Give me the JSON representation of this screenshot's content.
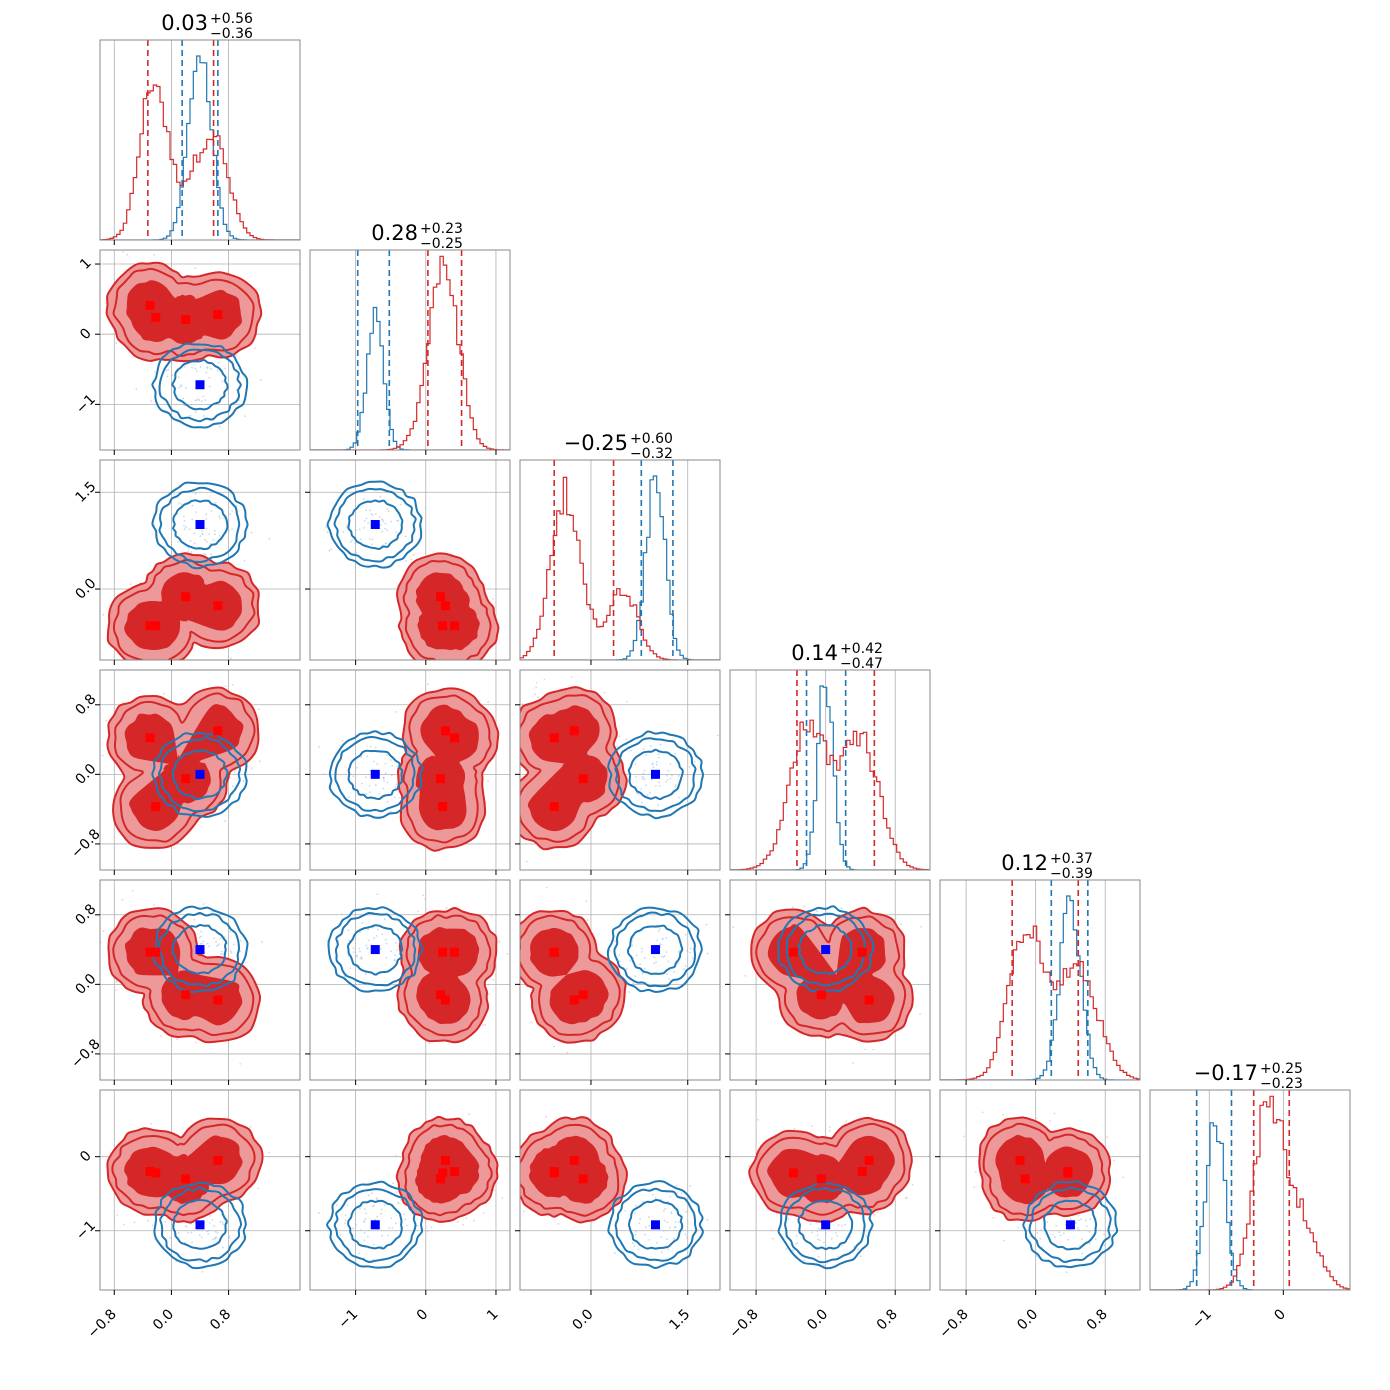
{
  "chart_data": {
    "type": "corner",
    "n_params": 6,
    "colors": {
      "red": "#d62728",
      "red_fill_outer": "#ee9999",
      "red_fill_inner": "#d62728",
      "blue": "#1f77b4",
      "blue_marker": "#0000ff",
      "red_marker": "#ff0000",
      "grid": "#b0b0b0"
    },
    "grid": true,
    "ranges": [
      [
        -1.0,
        1.8
      ],
      [
        -1.65,
        1.2
      ],
      [
        -1.1,
        2.0
      ],
      [
        -1.1,
        1.2
      ],
      [
        -1.1,
        1.2
      ],
      [
        -1.8,
        0.9
      ]
    ],
    "ticks": [
      {
        "values": [
          -0.8,
          0.0,
          0.8
        ],
        "labels": [
          "−0.8",
          "0.0",
          "0.8"
        ]
      },
      {
        "values": [
          -1,
          0,
          1
        ],
        "labels": [
          "−1",
          "0",
          "1"
        ]
      },
      {
        "values": [
          0.0,
          1.5
        ],
        "labels": [
          "0.0",
          "1.5"
        ]
      },
      {
        "values": [
          -0.8,
          0.0,
          0.8
        ],
        "labels": [
          "−0.8",
          "0.0",
          "0.8"
        ]
      },
      {
        "values": [
          -0.8,
          0.0,
          0.8
        ],
        "labels": [
          "−0.8",
          "0.0",
          "0.8"
        ]
      },
      {
        "values": [
          -1,
          0
        ],
        "labels": [
          "−1",
          "0"
        ]
      }
    ],
    "titles": [
      {
        "value": "0.03",
        "plus": "+0.56",
        "minus": "−0.36"
      },
      {
        "value": "0.28",
        "plus": "+0.23",
        "minus": "−0.25"
      },
      {
        "value": "−0.25",
        "plus": "+0.60",
        "minus": "−0.32"
      },
      {
        "value": "0.14",
        "plus": "+0.42",
        "minus": "−0.47"
      },
      {
        "value": "0.12",
        "plus": "+0.37",
        "minus": "−0.39"
      },
      {
        "value": "−0.17",
        "plus": "+0.25",
        "minus": "−0.23"
      }
    ],
    "series": [
      {
        "color": "red",
        "quantiles": [
          [
            -0.33,
            0.59
          ],
          [
            0.03,
            0.51
          ],
          [
            -0.57,
            0.35
          ],
          [
            -0.33,
            0.56
          ],
          [
            -0.27,
            0.49
          ],
          [
            -0.4,
            0.08
          ]
        ],
        "modes": [
          [
            -0.3,
            0.41,
            -0.57,
            0.42,
            0.37,
            -0.2
          ],
          [
            -0.22,
            0.24,
            -0.57,
            -0.37,
            0.37,
            -0.22
          ],
          [
            0.2,
            0.21,
            -0.12,
            -0.05,
            -0.12,
            -0.3
          ],
          [
            0.65,
            0.28,
            -0.26,
            0.5,
            -0.18,
            -0.05
          ]
        ],
        "hist_peaks": [
          [
            -0.25,
            0.55
          ],
          [
            0.3,
            0.15
          ],
          [
            -0.4,
            0.5
          ],
          [
            -0.2,
            0.35
          ],
          [
            -0.1,
            0.55
          ],
          [
            -0.2,
            0.25
          ]
        ]
      },
      {
        "color": "blue",
        "quantiles": [
          [
            0.15,
            0.65
          ],
          [
            -0.97,
            -0.52
          ],
          [
            0.78,
            1.27
          ],
          [
            -0.22,
            0.23
          ],
          [
            0.18,
            0.6
          ],
          [
            -1.17,
            -0.7
          ]
        ],
        "truth": [
          0.4,
          -0.72,
          1.0,
          0.0,
          0.4,
          -0.92
        ],
        "hist_widths": [
          0.16,
          0.12,
          0.15,
          0.09,
          0.12,
          0.13
        ]
      }
    ]
  }
}
